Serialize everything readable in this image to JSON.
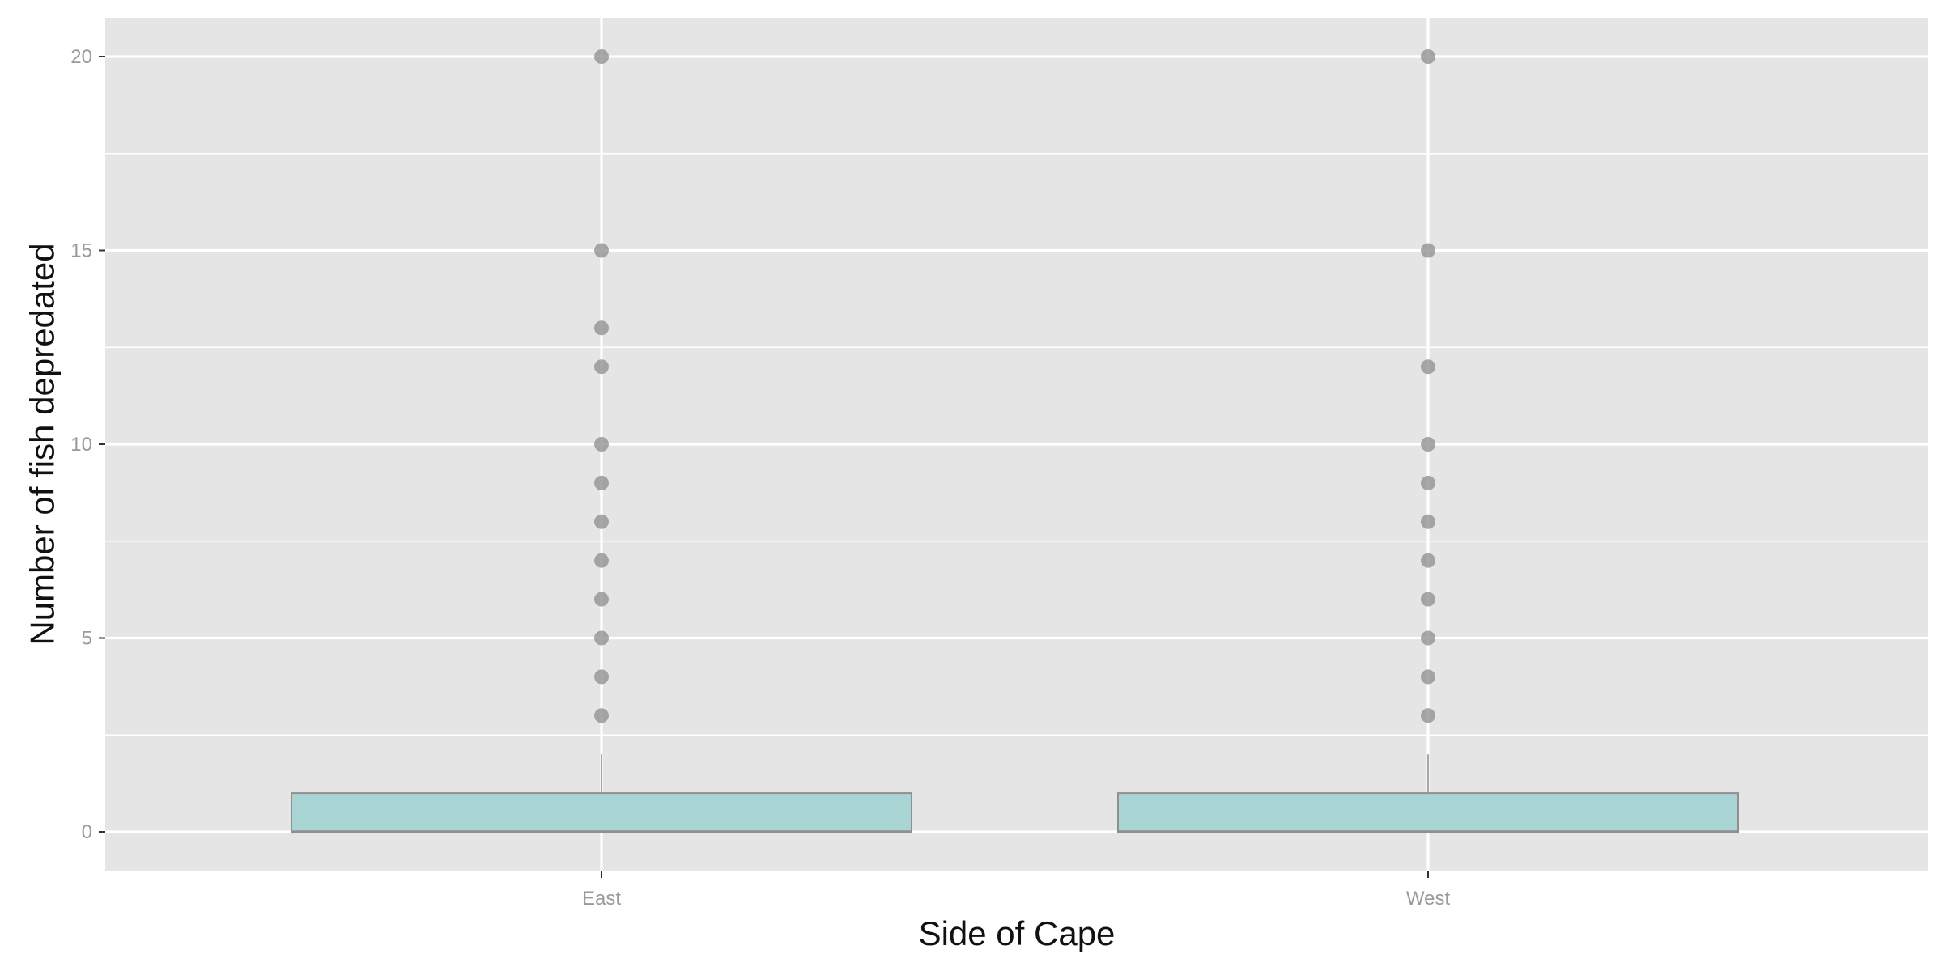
{
  "chart_data": {
    "type": "box",
    "title": "",
    "xlabel": "Side of Cape",
    "ylabel": "Number of fish depredated",
    "categories": [
      "East",
      "West"
    ],
    "ylim": [
      -1,
      21
    ],
    "yticks": [
      0,
      5,
      10,
      15,
      20
    ],
    "y_minor_gridlines": [
      2.5,
      7.5,
      12.5,
      17.5
    ],
    "grid": true,
    "legend": "none",
    "boxes": [
      {
        "category": "East",
        "q1": 0,
        "median": 0,
        "q3": 1,
        "whisker_low": 0,
        "whisker_high": 2,
        "outliers": [
          3,
          4,
          5,
          6,
          7,
          8,
          9,
          10,
          12,
          13,
          15,
          20
        ]
      },
      {
        "category": "West",
        "q1": 0,
        "median": 0,
        "q3": 1,
        "whisker_low": 0,
        "whisker_high": 2,
        "outliers": [
          3,
          4,
          5,
          6,
          7,
          8,
          9,
          10,
          12,
          15,
          20
        ]
      }
    ],
    "colors": {
      "panel": "#e5e5e5",
      "grid": "#ffffff",
      "box_fill": "#a8d5d3",
      "box_stroke": "#8f8f8f",
      "outlier": "#8c8c8c",
      "tick": "#333333"
    }
  }
}
